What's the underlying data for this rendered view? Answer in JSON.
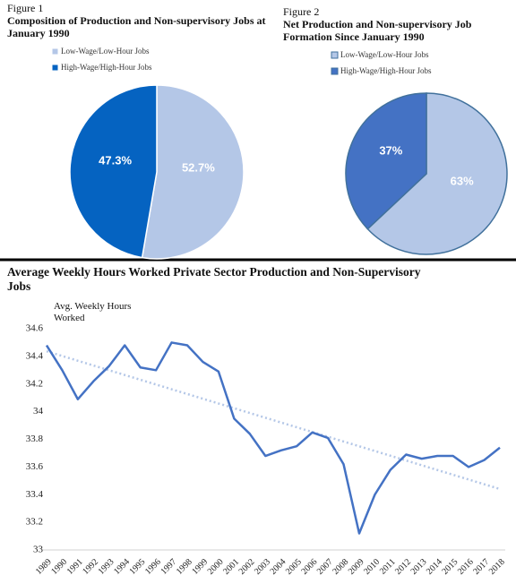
{
  "chart_data": [
    {
      "type": "pie",
      "label": "Figure 1",
      "title": "Composition of Production and Non-supervisory Jobs at January 1990",
      "categories": [
        "Low-Wage/Low-Hour Jobs",
        "High-Wage/High-Hour Jobs"
      ],
      "values": [
        52.7,
        47.3
      ],
      "value_labels": [
        "52.7%",
        "47.3%"
      ],
      "colors": [
        "#b4c7e7",
        "#0563c1"
      ],
      "edge_color": "#ffffff"
    },
    {
      "type": "pie",
      "label": "Figure 2",
      "title": "Net Production and Non-supervisory Job Formation Since January 1990",
      "categories": [
        "Low-Wage/Low-Hour Jobs",
        "High-Wage/High-Hour Jobs"
      ],
      "values": [
        63,
        37
      ],
      "value_labels": [
        "63%",
        "37%"
      ],
      "colors": [
        "#b4c7e7",
        "#4472c4"
      ],
      "edge_color": "#41719c"
    },
    {
      "type": "line",
      "title": "Average Weekly Hours Worked Private Sector Production and Non-Supervisory Jobs",
      "y_label": "Avg. Weekly Hours Worked",
      "categories": [
        "1989",
        "1990",
        "1991",
        "1992",
        "1993",
        "1994",
        "1995",
        "1996",
        "1997",
        "1998",
        "1999",
        "2000",
        "2001",
        "2002",
        "2003",
        "2004",
        "2005",
        "2006",
        "2007",
        "2008",
        "2009",
        "2010",
        "2011",
        "2012",
        "2013",
        "2014",
        "2015",
        "2016",
        "2017",
        "2018"
      ],
      "values": [
        34.48,
        34.3,
        34.09,
        34.22,
        34.33,
        34.48,
        34.32,
        34.3,
        34.5,
        34.48,
        34.36,
        34.29,
        33.95,
        33.84,
        33.68,
        33.72,
        33.75,
        33.85,
        33.81,
        33.62,
        33.12,
        33.4,
        33.58,
        33.69,
        33.66,
        33.68,
        33.68,
        33.6,
        33.65,
        33.74
      ],
      "color": "#4472c4",
      "trendline": true,
      "trendline_color": "#b4c7e7",
      "ylim": [
        33,
        34.6
      ],
      "yticks": [
        33,
        33.2,
        33.4,
        33.6,
        33.8,
        34,
        34.2,
        34.4,
        34.6
      ],
      "grid": false
    }
  ]
}
